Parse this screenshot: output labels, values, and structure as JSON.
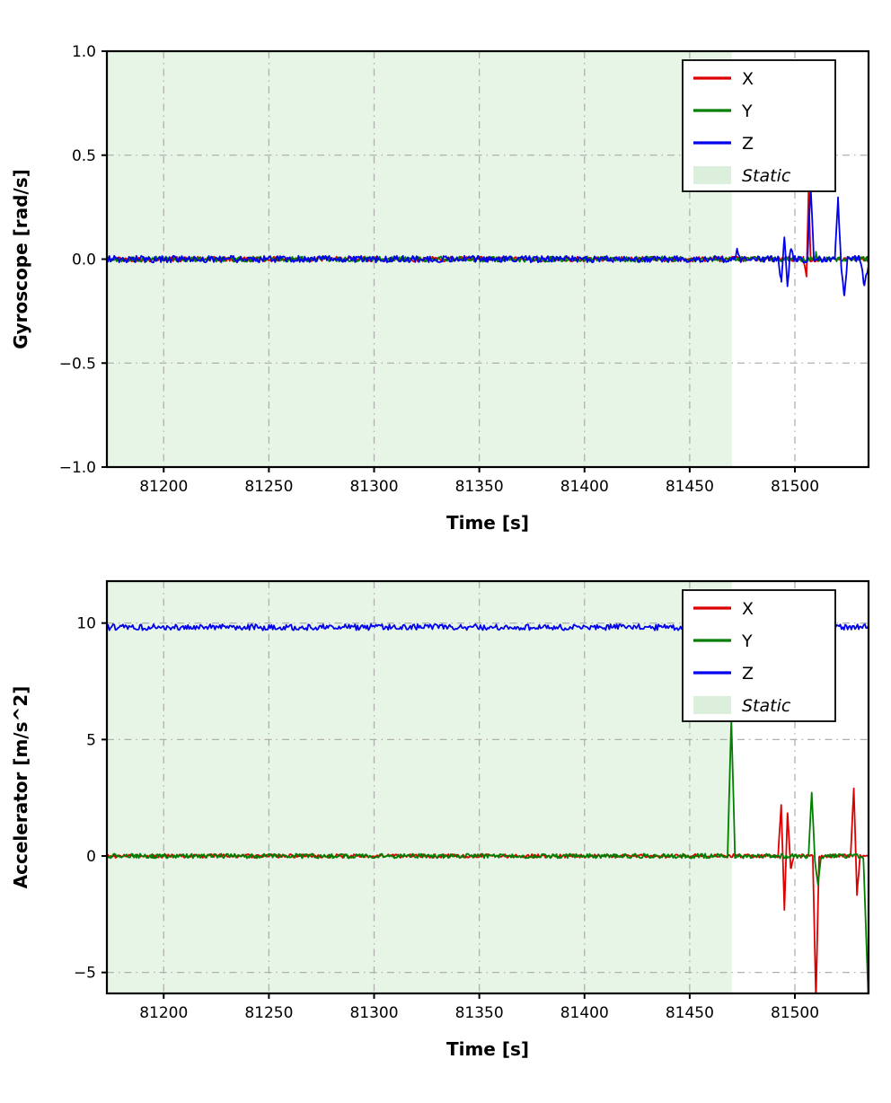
{
  "figure": {
    "background": "#ffffff"
  },
  "chart_data": [
    {
      "id": "gyroscope",
      "type": "line",
      "title": "",
      "xlabel": "Time [s]",
      "ylabel": "Gyroscope [rad/s]",
      "xlim": [
        81173,
        81535
      ],
      "ylim": [
        -1.0,
        1.0
      ],
      "xticks": [
        81200,
        81250,
        81300,
        81350,
        81400,
        81450,
        81500
      ],
      "xtick_labels": [
        "81200",
        "81250",
        "81300",
        "81350",
        "81400",
        "81450",
        "81500"
      ],
      "yticks": [
        -1.0,
        -0.5,
        0.0,
        0.5,
        1.0
      ],
      "ytick_labels": [
        "−1.0",
        "−0.5",
        "0.0",
        "0.5",
        "1.0"
      ],
      "grid": true,
      "grid_style": "dashdot",
      "static_region": {
        "x0": 81173,
        "x1": 81470,
        "color": "#e6f5e6",
        "label": "Static"
      },
      "legend": {
        "position": "upper right",
        "entries": [
          {
            "label": "X",
            "color": "#dd0000",
            "kind": "line",
            "italic": false
          },
          {
            "label": "Y",
            "color": "#007f00",
            "kind": "line",
            "italic": false
          },
          {
            "label": "Z",
            "color": "#0000ee",
            "kind": "line",
            "italic": false
          },
          {
            "label": "Static",
            "color": "#dcefdc",
            "kind": "patch",
            "italic": true
          }
        ]
      },
      "series": [
        {
          "name": "X",
          "color": "#dd0000",
          "noise": 0.012,
          "points": [
            [
              81173,
              0
            ],
            [
              81504,
              0
            ],
            [
              81505.5,
              -0.085
            ],
            [
              81506.5,
              0.32
            ],
            [
              81507.5,
              0
            ],
            [
              81535,
              0
            ]
          ]
        },
        {
          "name": "Y",
          "color": "#007f00",
          "noise": 0.013,
          "points": [
            [
              81173,
              0
            ],
            [
              81509,
              0
            ],
            [
              81510,
              0.03
            ],
            [
              81511,
              0
            ],
            [
              81535,
              0
            ]
          ]
        },
        {
          "name": "Z",
          "color": "#0000ee",
          "noise": 0.016,
          "points": [
            [
              81173,
              0
            ],
            [
              81471,
              0
            ],
            [
              81472.5,
              0.035
            ],
            [
              81474,
              0
            ],
            [
              81492,
              0
            ],
            [
              81493.5,
              -0.11
            ],
            [
              81495,
              0.1
            ],
            [
              81496.5,
              -0.13
            ],
            [
              81498,
              0.06
            ],
            [
              81499.5,
              0
            ],
            [
              81506,
              0
            ],
            [
              81507.5,
              0.36
            ],
            [
              81509,
              0
            ],
            [
              81519,
              0
            ],
            [
              81520.5,
              0.3
            ],
            [
              81522,
              -0.05
            ],
            [
              81523.5,
              -0.17
            ],
            [
              81525,
              0
            ],
            [
              81531,
              0
            ],
            [
              81533,
              -0.13
            ],
            [
              81535,
              -0.02
            ]
          ]
        }
      ]
    },
    {
      "id": "accelerator",
      "type": "line",
      "title": "",
      "xlabel": "Time [s]",
      "ylabel": "Accelerator [m/s^2]",
      "xlim": [
        81173,
        81535
      ],
      "ylim": [
        -5.9,
        11.8
      ],
      "xticks": [
        81200,
        81250,
        81300,
        81350,
        81400,
        81450,
        81500
      ],
      "xtick_labels": [
        "81200",
        "81250",
        "81300",
        "81350",
        "81400",
        "81450",
        "81500"
      ],
      "yticks": [
        -5,
        0,
        5,
        10
      ],
      "ytick_labels": [
        "−5",
        "0",
        "5",
        "10"
      ],
      "grid": true,
      "grid_style": "dashdot",
      "static_region": {
        "x0": 81173,
        "x1": 81470,
        "color": "#e6f5e6",
        "label": "Static"
      },
      "legend": {
        "position": "upper right",
        "entries": [
          {
            "label": "X",
            "color": "#dd0000",
            "kind": "line",
            "italic": false
          },
          {
            "label": "Y",
            "color": "#007f00",
            "kind": "line",
            "italic": false
          },
          {
            "label": "Z",
            "color": "#0000ee",
            "kind": "line",
            "italic": false
          },
          {
            "label": "Static",
            "color": "#dcefdc",
            "kind": "patch",
            "italic": true
          }
        ]
      },
      "series": [
        {
          "name": "X",
          "color": "#dd0000",
          "noise": 0.08,
          "points": [
            [
              81173,
              0
            ],
            [
              81492,
              0
            ],
            [
              81493.5,
              2.2
            ],
            [
              81495,
              -2.35
            ],
            [
              81496.5,
              1.9
            ],
            [
              81498,
              -0.6
            ],
            [
              81499.5,
              0
            ],
            [
              81508.5,
              0
            ],
            [
              81510,
              -6.2
            ],
            [
              81511.5,
              0
            ],
            [
              81526.5,
              0
            ],
            [
              81528,
              2.9
            ],
            [
              81529.5,
              -1.6
            ],
            [
              81531,
              0
            ],
            [
              81535,
              0
            ]
          ]
        },
        {
          "name": "Y",
          "color": "#007f00",
          "noise": 0.1,
          "points": [
            [
              81173,
              0
            ],
            [
              81468,
              0
            ],
            [
              81469.8,
              5.9
            ],
            [
              81471.5,
              0
            ],
            [
              81506.5,
              0
            ],
            [
              81508,
              2.7
            ],
            [
              81509.5,
              -0.2
            ],
            [
              81511,
              -1.2
            ],
            [
              81512.5,
              0
            ],
            [
              81532.5,
              0
            ],
            [
              81535,
              -6.3
            ]
          ]
        },
        {
          "name": "Z",
          "color": "#0000ee",
          "noise": 0.13,
          "points": [
            [
              81173,
              9.82
            ],
            [
              81535,
              9.82
            ]
          ]
        }
      ]
    }
  ]
}
